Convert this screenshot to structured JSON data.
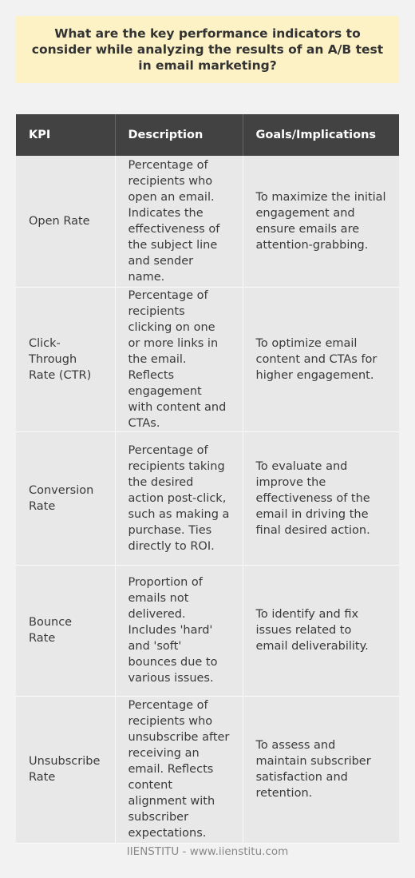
{
  "title": "What are the key performance indicators to consider while analyzing the results of an A/B test in email marketing?",
  "table": {
    "headers": [
      "KPI",
      "Description",
      "Goals/Implications"
    ],
    "rows": [
      {
        "kpi": "Open Rate",
        "description": "Percentage of recipients who open an email. Indicates the effectiveness of the subject line and sender name.",
        "goals": "To maximize the initial engagement and ensure emails are attention-grabbing."
      },
      {
        "kpi": "Click-Through Rate (CTR)",
        "description": "Percentage of recipients clicking on one or more links in the email. Reflects engagement with content and CTAs.",
        "goals": "To optimize email content and CTAs for higher engagement."
      },
      {
        "kpi": "Conversion Rate",
        "description": "Percentage of recipients taking the desired action post-click, such as making a purchase. Ties directly to ROI.",
        "goals": "To evaluate and improve the effectiveness of the email in driving the final desired action."
      },
      {
        "kpi": "Bounce Rate",
        "description": "Proportion of emails not delivered. Includes 'hard' and 'soft' bounces due to various issues.",
        "goals": "To identify and fix issues related to email deliverability."
      },
      {
        "kpi": "Unsubscribe Rate",
        "description": "Percentage of recipients who unsubscribe after receiving an email. Reflects content alignment with subscriber expectations.",
        "goals": "To assess and maintain subscriber satisfaction and retention."
      }
    ]
  },
  "footer": "IIENSTITU - www.iienstitu.com"
}
